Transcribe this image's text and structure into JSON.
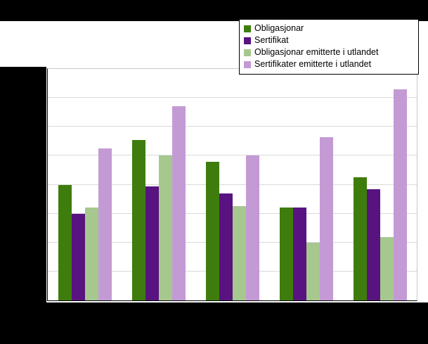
{
  "chart_data": {
    "type": "bar",
    "title": "",
    "categories": [
      "",
      "",
      "",
      "",
      ""
    ],
    "series": [
      {
        "name": "Obligasjonar",
        "color": "#3e7d0d",
        "values": [
          400,
          555,
          480,
          320,
          425
        ]
      },
      {
        "name": "Sertifikat",
        "color": "#581380",
        "values": [
          300,
          395,
          370,
          320,
          385
        ]
      },
      {
        "name": "Obligasjonar emitterte i utlandet",
        "color": "#a6c88e",
        "values": [
          320,
          500,
          325,
          200,
          220
        ]
      },
      {
        "name": "Sertifikater emitterte i utlandet",
        "color": "#c49ad5",
        "values": [
          525,
          670,
          500,
          565,
          730
        ]
      }
    ],
    "xlabel": "",
    "ylabel": "",
    "ylim": [
      0,
      800
    ],
    "gridline_intervals": 8,
    "grid": true,
    "legend_position": "top-right",
    "axis_tick_labels_visible": false
  },
  "colors": {
    "background": "#000000",
    "plot_background": "#ffffff",
    "gridline": "#d9d9d9"
  }
}
